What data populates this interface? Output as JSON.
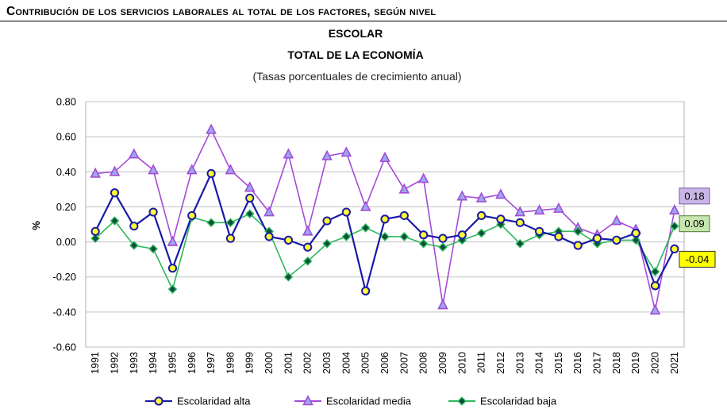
{
  "header": {
    "title_line1": "Contribución de los servicios laborales al total de los factores, según nivel",
    "title_line2": "ESCOLAR",
    "title_line3": "TOTAL  DE LA ECONOMÍA",
    "subtitle": "(Tasas porcentuales de crecimiento anual)"
  },
  "chart_data": {
    "type": "line",
    "ylabel": "%",
    "xlabel": "",
    "ylim": [
      -0.6,
      0.8
    ],
    "yticks": [
      -0.6,
      -0.4,
      -0.2,
      0.0,
      0.2,
      0.4,
      0.6,
      0.8
    ],
    "ytick_labels": [
      "-0.60",
      "-0.40",
      "-0.20",
      "0.00",
      "0.20",
      "0.40",
      "0.60",
      "0.80"
    ],
    "grid": true,
    "legend_position": "bottom",
    "categories": [
      "1991",
      "1992",
      "1993",
      "1994",
      "1995",
      "1996",
      "1997",
      "1998",
      "1999",
      "2000",
      "2001",
      "2002",
      "2003",
      "2004",
      "2005",
      "2006",
      "2007",
      "2008",
      "2009",
      "2010",
      "2011",
      "2012",
      "2013",
      "2014",
      "2015",
      "2016",
      "2017",
      "2018",
      "2019",
      "2020",
      "2021"
    ],
    "series": [
      {
        "name": "Escolaridad alta",
        "color": "#1a1aa6",
        "marker": "circle",
        "marker_fill": "#ffff33",
        "values": [
          0.06,
          0.28,
          0.09,
          0.17,
          -0.15,
          0.15,
          0.39,
          0.02,
          0.25,
          0.03,
          0.01,
          -0.03,
          0.12,
          0.17,
          -0.28,
          0.13,
          0.15,
          0.04,
          0.02,
          0.04,
          0.15,
          0.13,
          0.11,
          0.06,
          0.03,
          -0.02,
          0.02,
          0.01,
          0.05,
          -0.25,
          -0.04
        ]
      },
      {
        "name": "Escolaridad media",
        "color": "#a34bd6",
        "marker": "triangle",
        "marker_fill": "#9aa8f0",
        "values": [
          0.39,
          0.4,
          0.5,
          0.41,
          0.0,
          0.41,
          0.64,
          0.41,
          0.31,
          0.17,
          0.5,
          0.06,
          0.49,
          0.51,
          0.2,
          0.48,
          0.3,
          0.36,
          -0.36,
          0.26,
          0.25,
          0.27,
          0.17,
          0.18,
          0.19,
          0.08,
          0.04,
          0.12,
          0.07,
          -0.39,
          0.18
        ]
      },
      {
        "name": "Escolaridad baja",
        "color": "#2db85c",
        "marker": "diamond",
        "marker_fill": "#0d4f3a",
        "values": [
          0.02,
          0.12,
          -0.02,
          -0.04,
          -0.27,
          0.14,
          0.11,
          0.11,
          0.16,
          0.06,
          -0.2,
          -0.11,
          -0.01,
          0.03,
          0.08,
          0.03,
          0.03,
          -0.01,
          -0.03,
          0.01,
          0.05,
          0.1,
          -0.01,
          0.04,
          0.06,
          0.06,
          -0.01,
          0.01,
          0.01,
          -0.17,
          0.09
        ]
      }
    ],
    "annotations": [
      {
        "text": "0.18",
        "series": "Escolaridad media",
        "fill": "#c9b6e6",
        "border": "#7a5aa8"
      },
      {
        "text": "0.09",
        "series": "Escolaridad baja",
        "fill": "#c8e6b0",
        "border": "#4e7a2e"
      },
      {
        "text": "-0.04",
        "series": "Escolaridad alta",
        "fill": "#ffff00",
        "border": "#333333"
      }
    ]
  }
}
